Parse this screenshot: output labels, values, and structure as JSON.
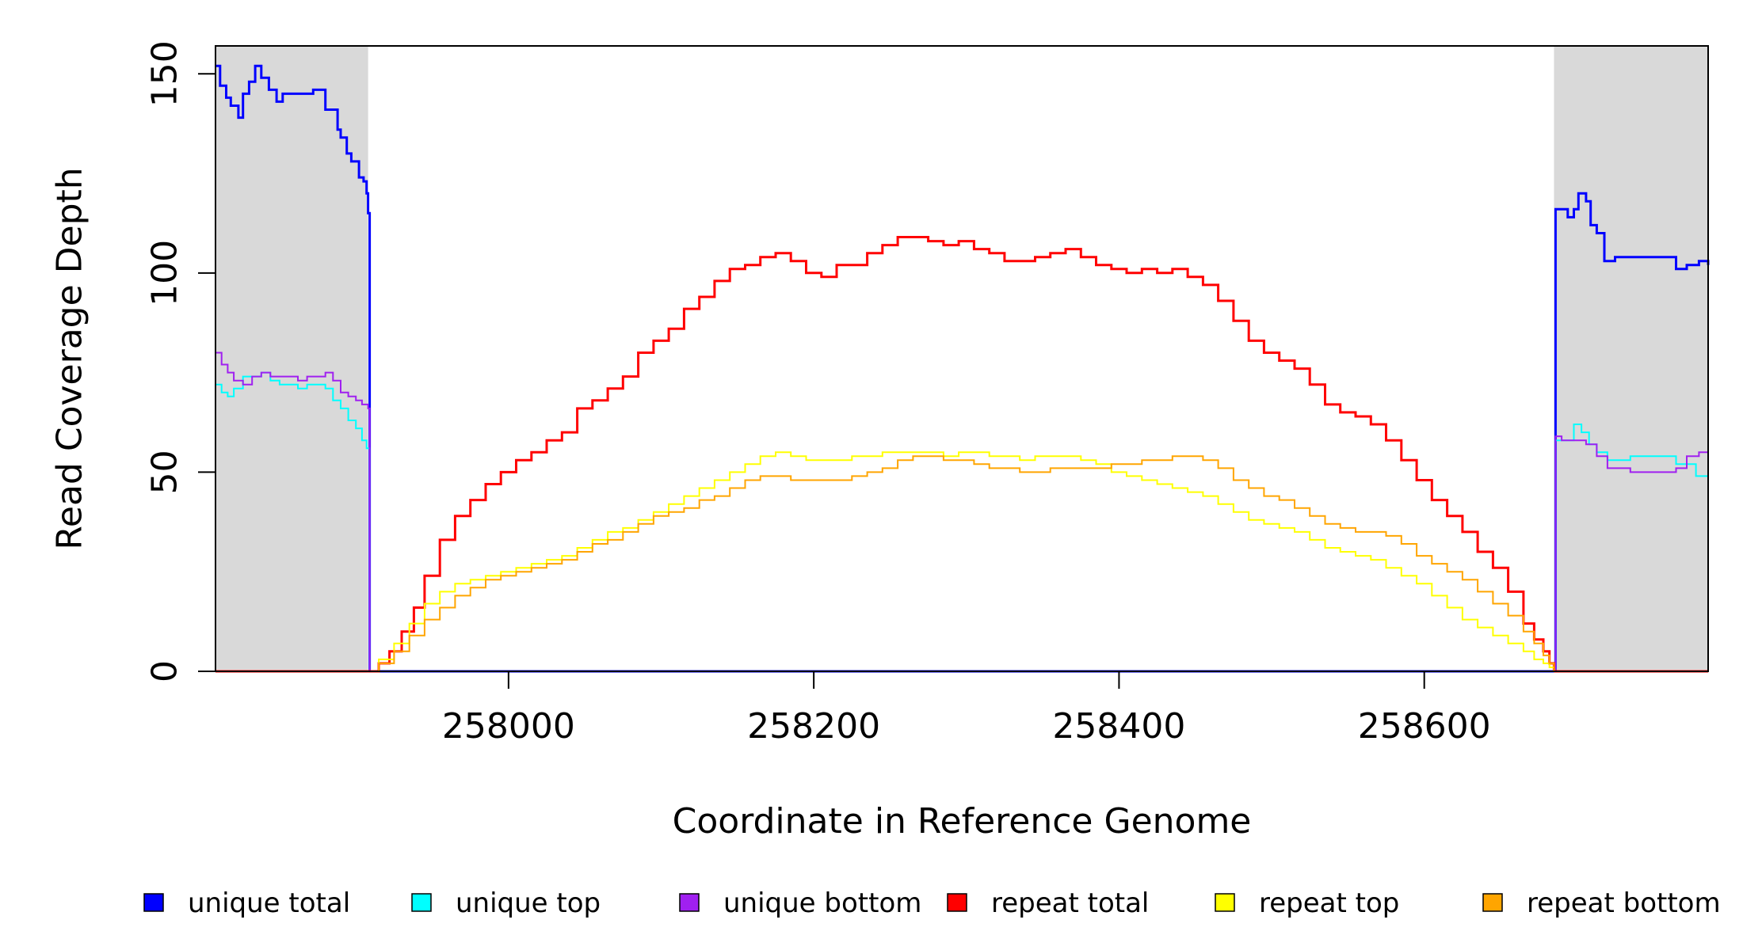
{
  "chart_data": {
    "type": "line",
    "title": "",
    "xlabel": "Coordinate in Reference Genome",
    "ylabel": "Read Coverage Depth",
    "xlim": [
      257808,
      258786
    ],
    "ylim": [
      0,
      157
    ],
    "x_ticks": [
      258000,
      258200,
      258400,
      258600
    ],
    "y_ticks": [
      0,
      50,
      100,
      150
    ],
    "grid": false,
    "shaded_regions": [
      {
        "x_start": 257808,
        "x_end": 257908,
        "color": "#d9d9d9"
      },
      {
        "x_start": 258685,
        "x_end": 258786,
        "color": "#d9d9d9"
      }
    ],
    "legend_placement": "bottom",
    "series": [
      {
        "name": "unique total",
        "color": "#0000ff",
        "stroke_width": 3,
        "x": [
          257808,
          257811,
          257815,
          257818,
          257823,
          257826,
          257830,
          257834,
          257838,
          257843,
          257848,
          257852,
          257856,
          257860,
          257866,
          257872,
          257880,
          257888,
          257890,
          257894,
          257897,
          257902,
          257905,
          257907,
          257908,
          257909,
          258685,
          258686,
          258690,
          258694,
          258698,
          258701,
          258706,
          258709,
          258713,
          258718,
          258725,
          258740,
          258755,
          258765,
          258772,
          258780,
          258786
        ],
        "y": [
          152,
          147,
          144,
          142,
          139,
          145,
          148,
          152,
          149,
          146,
          143,
          145,
          145,
          145,
          145,
          146,
          141,
          136,
          134,
          130,
          128,
          124,
          123,
          120,
          115,
          0,
          0,
          116,
          116,
          114,
          116,
          120,
          118,
          112,
          110,
          103,
          104,
          104,
          104,
          101,
          102,
          103,
          102
        ]
      },
      {
        "name": "unique top",
        "color": "#00ffff",
        "stroke_width": 2,
        "x": [
          257808,
          257812,
          257816,
          257820,
          257826,
          257832,
          257838,
          257844,
          257850,
          257856,
          257862,
          257868,
          257874,
          257880,
          257885,
          257890,
          257895,
          257900,
          257904,
          257907,
          257908,
          257909,
          258685,
          258686,
          258690,
          258698,
          258703,
          258708,
          258713,
          258720,
          258735,
          258750,
          258765,
          258778,
          258786
        ],
        "y": [
          72,
          70,
          69,
          71,
          74,
          74,
          75,
          73,
          72,
          72,
          71,
          72,
          72,
          71,
          68,
          66,
          63,
          61,
          58,
          56,
          56,
          0,
          0,
          58,
          58,
          62,
          60,
          57,
          55,
          53,
          54,
          54,
          52,
          49,
          47
        ]
      },
      {
        "name": "unique bottom",
        "color": "#a020f0",
        "stroke_width": 2,
        "x": [
          257808,
          257812,
          257816,
          257820,
          257826,
          257832,
          257838,
          257844,
          257850,
          257856,
          257862,
          257868,
          257874,
          257880,
          257885,
          257890,
          257895,
          257900,
          257904,
          257907,
          257908,
          257909,
          258685,
          258686,
          258690,
          258698,
          258706,
          258713,
          258720,
          258735,
          258750,
          258765,
          258772,
          258780,
          258786
        ],
        "y": [
          80,
          77,
          75,
          73,
          72,
          74,
          75,
          74,
          74,
          74,
          73,
          74,
          74,
          75,
          73,
          70,
          69,
          68,
          67,
          67,
          66,
          0,
          0,
          59,
          58,
          58,
          57,
          54,
          51,
          50,
          50,
          51,
          54,
          55,
          55
        ]
      },
      {
        "name": "repeat total",
        "color": "#ff0000",
        "stroke_width": 3,
        "x": [
          257908,
          257915,
          257922,
          257930,
          257938,
          257945,
          257955,
          257965,
          257975,
          257985,
          257995,
          258005,
          258015,
          258025,
          258035,
          258045,
          258055,
          258065,
          258075,
          258085,
          258095,
          258105,
          258115,
          258125,
          258135,
          258145,
          258155,
          258165,
          258175,
          258185,
          258195,
          258205,
          258215,
          258225,
          258235,
          258245,
          258255,
          258265,
          258275,
          258285,
          258295,
          258305,
          258315,
          258325,
          258335,
          258345,
          258355,
          258365,
          258375,
          258385,
          258395,
          258405,
          258415,
          258425,
          258435,
          258445,
          258455,
          258465,
          258475,
          258485,
          258495,
          258505,
          258515,
          258525,
          258535,
          258545,
          258555,
          258565,
          258575,
          258585,
          258595,
          258605,
          258615,
          258625,
          258635,
          258645,
          258655,
          258665,
          258672,
          258678,
          258682,
          258685
        ],
        "y": [
          0,
          2,
          5,
          10,
          16,
          24,
          33,
          39,
          43,
          47,
          50,
          53,
          55,
          58,
          60,
          66,
          68,
          71,
          74,
          80,
          83,
          86,
          91,
          94,
          98,
          101,
          102,
          104,
          105,
          103,
          100,
          99,
          102,
          102,
          105,
          107,
          109,
          109,
          108,
          107,
          108,
          106,
          105,
          103,
          103,
          104,
          105,
          106,
          104,
          102,
          101,
          100,
          101,
          100,
          101,
          99,
          97,
          93,
          88,
          83,
          80,
          78,
          76,
          72,
          67,
          65,
          64,
          62,
          58,
          53,
          48,
          43,
          39,
          35,
          30,
          26,
          20,
          12,
          8,
          5,
          2,
          0
        ]
      },
      {
        "name": "repeat top",
        "color": "#ffff00",
        "stroke_width": 2,
        "x": [
          257908,
          257915,
          257925,
          257935,
          257945,
          257955,
          257965,
          257975,
          257985,
          257995,
          258005,
          258015,
          258025,
          258035,
          258045,
          258055,
          258065,
          258075,
          258085,
          258095,
          258105,
          258115,
          258125,
          258135,
          258145,
          258155,
          258165,
          258175,
          258185,
          258195,
          258205,
          258215,
          258225,
          258235,
          258245,
          258255,
          258265,
          258275,
          258285,
          258295,
          258305,
          258315,
          258325,
          258335,
          258345,
          258355,
          258365,
          258375,
          258385,
          258395,
          258405,
          258415,
          258425,
          258435,
          258445,
          258455,
          258465,
          258475,
          258485,
          258495,
          258505,
          258515,
          258525,
          258535,
          258545,
          258555,
          258565,
          258575,
          258585,
          258595,
          258605,
          258615,
          258625,
          258635,
          258645,
          258655,
          258665,
          258672,
          258678,
          258682,
          258685
        ],
        "y": [
          0,
          3,
          7,
          12,
          17,
          20,
          22,
          23,
          24,
          25,
          26,
          27,
          28,
          29,
          31,
          33,
          35,
          36,
          38,
          40,
          42,
          44,
          46,
          48,
          50,
          52,
          54,
          55,
          54,
          53,
          53,
          53,
          54,
          54,
          55,
          55,
          55,
          55,
          54,
          55,
          55,
          54,
          54,
          53,
          54,
          54,
          54,
          53,
          52,
          50,
          49,
          48,
          47,
          46,
          45,
          44,
          42,
          40,
          38,
          37,
          36,
          35,
          33,
          31,
          30,
          29,
          28,
          26,
          24,
          22,
          19,
          16,
          13,
          11,
          9,
          7,
          5,
          3,
          2,
          1,
          0
        ]
      },
      {
        "name": "repeat bottom",
        "color": "#ffa500",
        "stroke_width": 2,
        "x": [
          257908,
          257915,
          257925,
          257935,
          257945,
          257955,
          257965,
          257975,
          257985,
          257995,
          258005,
          258015,
          258025,
          258035,
          258045,
          258055,
          258065,
          258075,
          258085,
          258095,
          258105,
          258115,
          258125,
          258135,
          258145,
          258155,
          258165,
          258175,
          258185,
          258195,
          258205,
          258215,
          258225,
          258235,
          258245,
          258255,
          258265,
          258275,
          258285,
          258295,
          258305,
          258315,
          258325,
          258335,
          258345,
          258355,
          258365,
          258375,
          258385,
          258395,
          258405,
          258415,
          258425,
          258435,
          258445,
          258455,
          258465,
          258475,
          258485,
          258495,
          258505,
          258515,
          258525,
          258535,
          258545,
          258555,
          258565,
          258575,
          258585,
          258595,
          258605,
          258615,
          258625,
          258635,
          258645,
          258655,
          258665,
          258672,
          258678,
          258682,
          258685
        ],
        "y": [
          0,
          2,
          5,
          9,
          13,
          16,
          19,
          21,
          23,
          24,
          25,
          26,
          27,
          28,
          30,
          32,
          33,
          35,
          37,
          39,
          40,
          41,
          43,
          44,
          46,
          48,
          49,
          49,
          48,
          48,
          48,
          48,
          49,
          50,
          51,
          53,
          54,
          54,
          53,
          53,
          52,
          51,
          51,
          50,
          50,
          51,
          51,
          51,
          51,
          52,
          52,
          53,
          53,
          54,
          54,
          53,
          51,
          48,
          46,
          44,
          43,
          41,
          39,
          37,
          36,
          35,
          35,
          34,
          32,
          29,
          27,
          25,
          23,
          20,
          17,
          14,
          10,
          7,
          4,
          2,
          0
        ]
      }
    ]
  }
}
